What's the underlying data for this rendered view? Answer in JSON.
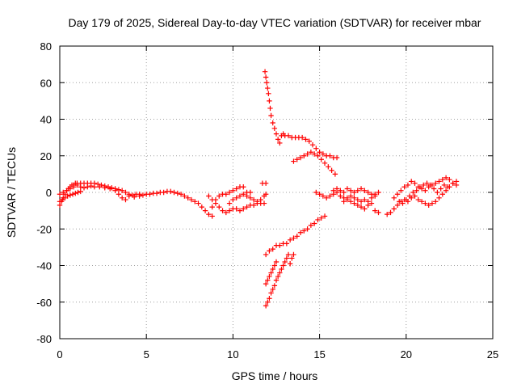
{
  "chart_data": {
    "type": "scatter",
    "title": "Day 179 of 2025, Sidereal Day-to-day VTEC variation (SDTVAR) for receiver mbar",
    "xlabel": "GPS time / hours",
    "ylabel": "SDTVAR / TECUs",
    "xlim": [
      0,
      25
    ],
    "ylim": [
      -80,
      80
    ],
    "xticks": [
      0,
      5,
      10,
      15,
      20,
      25
    ],
    "yticks": [
      -80,
      -60,
      -40,
      -20,
      0,
      20,
      40,
      60,
      80
    ],
    "xtick_labels": [
      "0",
      "5",
      "10",
      "15",
      "20",
      "25"
    ],
    "ytick_labels": [
      "-80",
      "-60",
      "-40",
      "-20",
      "0",
      "20",
      "40",
      "60",
      "80"
    ],
    "grid": true,
    "marker": "plus",
    "color": "#ff0000",
    "series": [
      {
        "points": [
          [
            0.0,
            -7
          ],
          [
            0.1,
            -5
          ],
          [
            0.2,
            -3
          ],
          [
            0.3,
            -1
          ],
          [
            0.4,
            1
          ],
          [
            0.5,
            2
          ],
          [
            0.6,
            3
          ],
          [
            0.7,
            4
          ],
          [
            0.8,
            4
          ],
          [
            0.9,
            5
          ],
          [
            1.0,
            5
          ],
          [
            1.2,
            5
          ],
          [
            1.4,
            5
          ],
          [
            1.6,
            5
          ],
          [
            1.8,
            5
          ],
          [
            2.0,
            5
          ],
          [
            2.2,
            4.5
          ],
          [
            2.4,
            4
          ],
          [
            2.6,
            3.5
          ],
          [
            2.8,
            3
          ],
          [
            3.0,
            2.5
          ],
          [
            3.2,
            2
          ],
          [
            3.4,
            1.5
          ],
          [
            3.6,
            1
          ],
          [
            3.8,
            0
          ],
          [
            4.0,
            -1
          ],
          [
            4.2,
            -1.5
          ],
          [
            4.4,
            -1
          ],
          [
            4.6,
            -1
          ],
          [
            4.8,
            -1.5
          ],
          [
            5.0,
            -1
          ],
          [
            5.2,
            -1
          ],
          [
            5.4,
            -0.5
          ],
          [
            5.6,
            -0.5
          ],
          [
            5.8,
            0
          ],
          [
            6.0,
            0
          ],
          [
            6.2,
            0.5
          ],
          [
            6.4,
            0.5
          ],
          [
            6.6,
            0
          ],
          [
            6.8,
            -0.5
          ],
          [
            7.0,
            -1
          ],
          [
            7.2,
            -2
          ],
          [
            7.4,
            -3
          ],
          [
            7.6,
            -4
          ],
          [
            7.8,
            -5
          ],
          [
            8.0,
            -6
          ],
          [
            8.2,
            -8
          ],
          [
            8.4,
            -10
          ],
          [
            8.6,
            -12
          ],
          [
            8.8,
            -13
          ]
        ]
      },
      {
        "points": [
          [
            0.0,
            -1
          ],
          [
            0.2,
            0
          ],
          [
            0.4,
            1
          ],
          [
            0.6,
            2
          ],
          [
            0.8,
            3
          ],
          [
            1.0,
            4
          ],
          [
            1.2,
            3
          ],
          [
            1.4,
            2.5
          ],
          [
            1.6,
            3
          ],
          [
            1.8,
            3.5
          ],
          [
            2.0,
            3
          ],
          [
            2.3,
            3
          ],
          [
            2.6,
            2.5
          ],
          [
            2.9,
            2
          ],
          [
            3.2,
            1
          ],
          [
            3.4,
            -1
          ],
          [
            3.6,
            -3
          ],
          [
            3.8,
            -4
          ],
          [
            4.0,
            -2
          ],
          [
            4.3,
            -2.5
          ],
          [
            4.6,
            -2
          ]
        ]
      },
      {
        "points": [
          [
            0.0,
            -5
          ],
          [
            0.15,
            -4
          ],
          [
            0.3,
            -3
          ],
          [
            0.45,
            -2
          ],
          [
            0.6,
            -1.5
          ],
          [
            0.75,
            -1
          ],
          [
            0.9,
            -0.5
          ],
          [
            1.05,
            0
          ],
          [
            1.2,
            0.5
          ]
        ]
      },
      {
        "points": [
          [
            8.6,
            -2
          ],
          [
            8.8,
            -4
          ],
          [
            9.0,
            -6
          ],
          [
            9.2,
            -8
          ],
          [
            9.4,
            -10
          ],
          [
            9.6,
            -11
          ],
          [
            9.8,
            -10
          ],
          [
            10.0,
            -9
          ],
          [
            10.2,
            -9
          ],
          [
            10.4,
            -10
          ],
          [
            10.6,
            -9
          ],
          [
            10.8,
            -8
          ],
          [
            11.0,
            -7
          ],
          [
            11.2,
            -7
          ],
          [
            11.4,
            -6
          ],
          [
            11.6,
            -6
          ],
          [
            11.8,
            -6
          ]
        ]
      },
      {
        "points": [
          [
            8.8,
            -8
          ],
          [
            9.0,
            -4
          ],
          [
            9.2,
            -2
          ],
          [
            9.4,
            -1
          ],
          [
            9.6,
            -1
          ],
          [
            9.8,
            0
          ],
          [
            10.0,
            1
          ],
          [
            10.2,
            2
          ],
          [
            10.4,
            3
          ],
          [
            10.6,
            3
          ],
          [
            10.8,
            -2
          ],
          [
            11.0,
            -3
          ],
          [
            11.2,
            -4
          ],
          [
            11.4,
            -5
          ],
          [
            11.6,
            -4
          ],
          [
            11.8,
            -2
          ],
          [
            11.9,
            -1
          ],
          [
            11.7,
            5
          ],
          [
            11.9,
            5
          ]
        ]
      },
      {
        "points": [
          [
            9.8,
            -6
          ],
          [
            10.0,
            -4
          ],
          [
            10.2,
            -3
          ],
          [
            10.4,
            -2
          ],
          [
            10.6,
            -1
          ],
          [
            10.8,
            0
          ],
          [
            11.0,
            0
          ]
        ]
      },
      {
        "points": [
          [
            11.85,
            66
          ],
          [
            11.9,
            63
          ],
          [
            11.95,
            60
          ],
          [
            12.0,
            57
          ],
          [
            12.05,
            54
          ],
          [
            12.1,
            50
          ],
          [
            12.15,
            46
          ],
          [
            12.2,
            42
          ],
          [
            12.3,
            38
          ],
          [
            12.4,
            35
          ],
          [
            12.5,
            32
          ],
          [
            12.6,
            29
          ],
          [
            12.7,
            27
          ],
          [
            12.8,
            31
          ],
          [
            12.9,
            32
          ],
          [
            13.0,
            31
          ],
          [
            13.2,
            31
          ],
          [
            13.4,
            30
          ],
          [
            13.6,
            30
          ],
          [
            13.8,
            30
          ],
          [
            14.0,
            30
          ],
          [
            14.2,
            29
          ],
          [
            14.4,
            28
          ],
          [
            14.6,
            26
          ],
          [
            14.8,
            24
          ],
          [
            15.0,
            22
          ],
          [
            15.2,
            21
          ],
          [
            15.4,
            20
          ],
          [
            15.6,
            20
          ],
          [
            15.8,
            19
          ],
          [
            16.0,
            19
          ]
        ]
      },
      {
        "points": [
          [
            13.5,
            17
          ],
          [
            13.7,
            18
          ],
          [
            13.9,
            19
          ],
          [
            14.1,
            20
          ],
          [
            14.3,
            21
          ],
          [
            14.5,
            22
          ],
          [
            14.7,
            21
          ],
          [
            14.9,
            20
          ],
          [
            15.1,
            18
          ],
          [
            15.3,
            16
          ],
          [
            15.5,
            14
          ],
          [
            15.7,
            12
          ],
          [
            15.9,
            10
          ]
        ]
      },
      {
        "points": [
          [
            11.9,
            -34
          ],
          [
            12.1,
            -32
          ],
          [
            12.3,
            -31
          ],
          [
            12.5,
            -29
          ],
          [
            12.7,
            -29
          ],
          [
            12.9,
            -28
          ],
          [
            13.1,
            -28
          ],
          [
            13.3,
            -26
          ],
          [
            13.5,
            -25
          ],
          [
            13.7,
            -24
          ],
          [
            13.9,
            -22
          ],
          [
            14.1,
            -21
          ],
          [
            14.3,
            -20
          ],
          [
            14.5,
            -18
          ],
          [
            14.7,
            -17
          ],
          [
            14.9,
            -15
          ],
          [
            15.1,
            -14
          ],
          [
            15.3,
            -13
          ]
        ]
      },
      {
        "points": [
          [
            11.9,
            -62
          ],
          [
            12.0,
            -60
          ],
          [
            12.1,
            -58
          ],
          [
            12.2,
            -55
          ],
          [
            12.3,
            -53
          ],
          [
            12.4,
            -51
          ],
          [
            12.5,
            -48
          ],
          [
            12.6,
            -46
          ],
          [
            12.7,
            -44
          ],
          [
            12.8,
            -42
          ],
          [
            12.9,
            -40
          ],
          [
            13.0,
            -38
          ],
          [
            13.1,
            -36
          ],
          [
            13.2,
            -34
          ]
        ]
      },
      {
        "points": [
          [
            11.9,
            -50
          ],
          [
            12.0,
            -48
          ],
          [
            12.1,
            -46
          ],
          [
            12.2,
            -44
          ],
          [
            12.3,
            -42
          ],
          [
            12.4,
            -40
          ],
          [
            12.5,
            -38
          ],
          [
            13.3,
            -39
          ],
          [
            13.4,
            -36
          ],
          [
            13.5,
            -34
          ]
        ]
      },
      {
        "points": [
          [
            14.8,
            0
          ],
          [
            15.0,
            -1
          ],
          [
            15.2,
            -2
          ],
          [
            15.4,
            -3
          ],
          [
            15.6,
            -2
          ],
          [
            15.8,
            -1
          ],
          [
            16.0,
            0
          ],
          [
            16.2,
            -2
          ],
          [
            16.4,
            -3
          ],
          [
            16.6,
            -4
          ],
          [
            16.8,
            -5
          ],
          [
            17.0,
            -6
          ],
          [
            17.2,
            -7
          ],
          [
            17.4,
            -8
          ],
          [
            17.6,
            -9
          ],
          [
            17.8,
            -7
          ],
          [
            18.0,
            -6
          ],
          [
            18.2,
            -10
          ],
          [
            18.4,
            -11
          ]
        ]
      },
      {
        "points": [
          [
            15.8,
            1
          ],
          [
            16.0,
            2
          ],
          [
            16.2,
            1
          ],
          [
            16.4,
            0
          ],
          [
            16.6,
            2
          ],
          [
            16.8,
            1
          ],
          [
            17.0,
            0
          ],
          [
            17.2,
            1
          ],
          [
            17.4,
            2
          ],
          [
            17.6,
            1
          ],
          [
            17.8,
            0
          ],
          [
            18.0,
            -1
          ],
          [
            18.2,
            -2
          ]
        ]
      },
      {
        "points": [
          [
            16.4,
            -5
          ],
          [
            16.6,
            -3
          ],
          [
            16.8,
            -2
          ],
          [
            17.0,
            -3
          ],
          [
            17.2,
            -4
          ],
          [
            17.4,
            -5
          ],
          [
            17.6,
            -4
          ],
          [
            17.8,
            -5
          ],
          [
            18.0,
            -3
          ],
          [
            18.2,
            -1
          ],
          [
            18.4,
            0
          ]
        ]
      },
      {
        "points": [
          [
            18.9,
            -12
          ],
          [
            19.1,
            -11
          ],
          [
            19.3,
            -9
          ],
          [
            19.5,
            -7
          ],
          [
            19.7,
            -5
          ],
          [
            19.9,
            -4
          ],
          [
            20.1,
            -5
          ],
          [
            20.3,
            -3
          ],
          [
            20.5,
            -2
          ],
          [
            20.7,
            -4
          ],
          [
            20.9,
            -5
          ],
          [
            21.1,
            -6
          ],
          [
            21.3,
            -7
          ],
          [
            21.5,
            -6
          ],
          [
            21.7,
            -5
          ],
          [
            21.9,
            -3
          ],
          [
            22.1,
            -1
          ],
          [
            22.3,
            1
          ],
          [
            22.5,
            3
          ],
          [
            22.7,
            5
          ],
          [
            22.9,
            6
          ]
        ]
      },
      {
        "points": [
          [
            19.3,
            -3
          ],
          [
            19.5,
            -1
          ],
          [
            19.7,
            1
          ],
          [
            19.9,
            3
          ],
          [
            20.1,
            4
          ],
          [
            20.3,
            6
          ],
          [
            20.5,
            5
          ],
          [
            20.7,
            3
          ],
          [
            20.9,
            2
          ],
          [
            21.1,
            1
          ],
          [
            21.3,
            3
          ],
          [
            21.5,
            4
          ],
          [
            21.7,
            5
          ],
          [
            21.9,
            6
          ],
          [
            22.1,
            7
          ],
          [
            22.3,
            8
          ],
          [
            22.5,
            7
          ],
          [
            22.7,
            5
          ],
          [
            22.9,
            4
          ]
        ]
      },
      {
        "points": [
          [
            19.6,
            -5
          ],
          [
            19.8,
            -6
          ],
          [
            20.0,
            -4
          ],
          [
            20.2,
            -2
          ],
          [
            20.4,
            0
          ],
          [
            20.6,
            1
          ],
          [
            20.8,
            3
          ],
          [
            21.0,
            4
          ],
          [
            21.2,
            5
          ],
          [
            21.4,
            4
          ],
          [
            21.6,
            2
          ],
          [
            21.8,
            0
          ],
          [
            22.0,
            2
          ],
          [
            22.2,
            4
          ],
          [
            22.4,
            3
          ]
        ]
      }
    ]
  }
}
